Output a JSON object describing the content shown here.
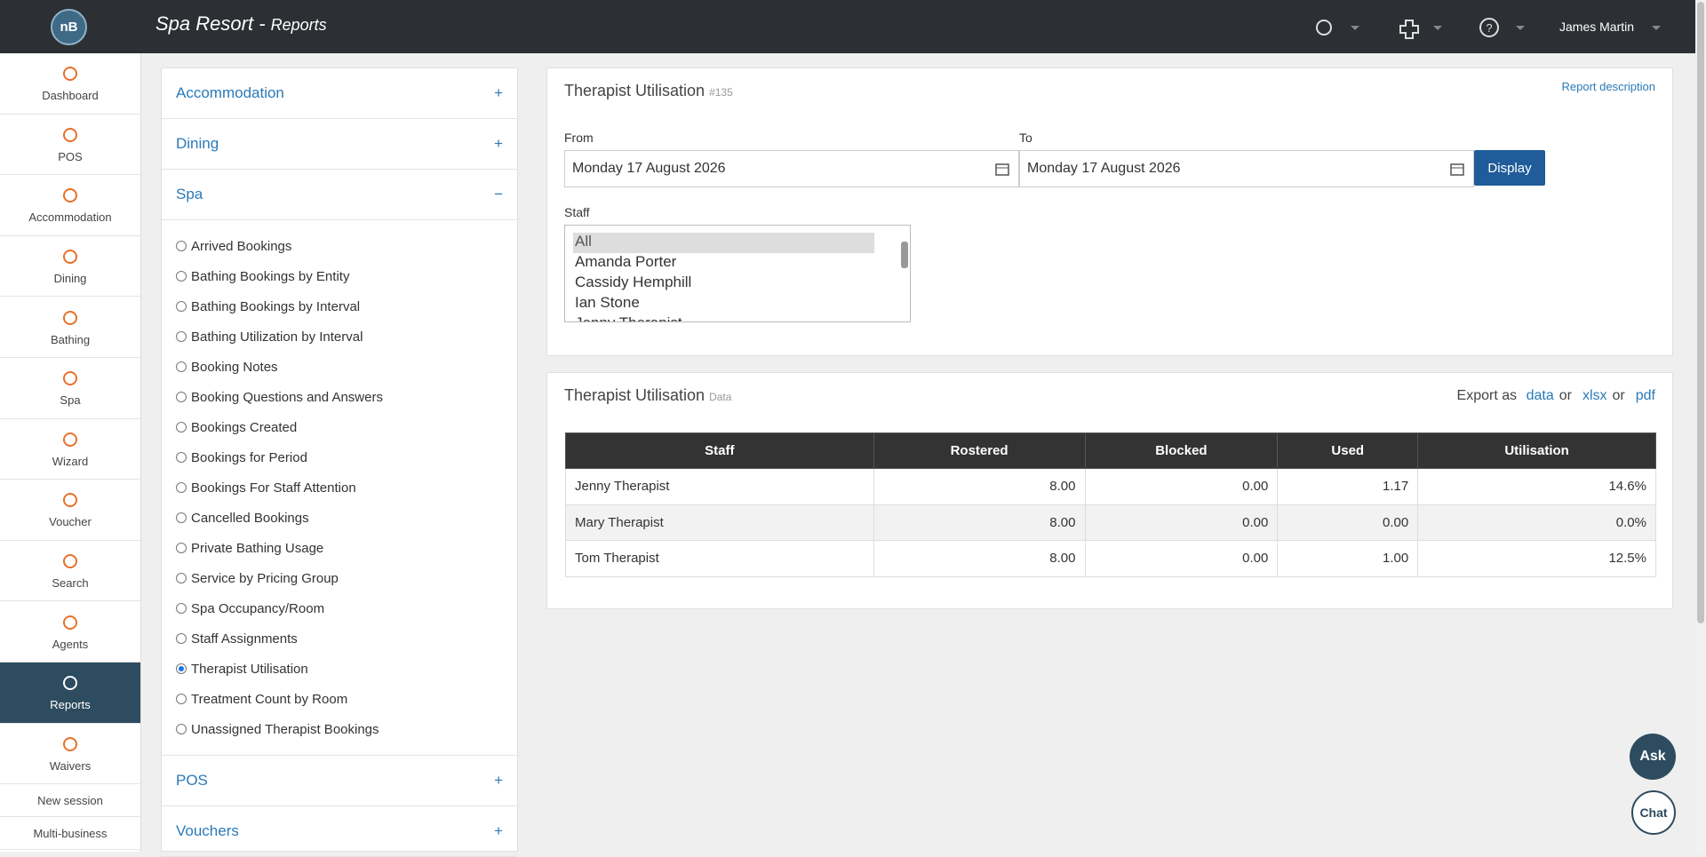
{
  "header": {
    "title": "Spa Resort",
    "separator": "-",
    "subtitle": "Reports",
    "user": "James Martin"
  },
  "sidebar": {
    "items": [
      {
        "label": "Dashboard"
      },
      {
        "label": "POS"
      },
      {
        "label": "Accommodation"
      },
      {
        "label": "Dining"
      },
      {
        "label": "Bathing"
      },
      {
        "label": "Spa"
      },
      {
        "label": "Wizard"
      },
      {
        "label": "Voucher"
      },
      {
        "label": "Search"
      },
      {
        "label": "Agents"
      },
      {
        "label": "Reports",
        "active": true
      },
      {
        "label": "Waivers"
      }
    ],
    "footer": [
      "New session",
      "Multi-business"
    ]
  },
  "report_menu": {
    "sections": [
      {
        "label": "Accommodation",
        "toggle": "+"
      },
      {
        "label": "Dining",
        "toggle": "+"
      },
      {
        "label": "Spa",
        "toggle": "−",
        "items": [
          {
            "label": "Arrived Bookings"
          },
          {
            "label": "Bathing Bookings by Entity"
          },
          {
            "label": "Bathing Bookings by Interval"
          },
          {
            "label": "Bathing Utilization by Interval"
          },
          {
            "label": "Booking Notes"
          },
          {
            "label": "Booking Questions and Answers"
          },
          {
            "label": "Bookings Created"
          },
          {
            "label": "Bookings for Period"
          },
          {
            "label": "Bookings For Staff Attention"
          },
          {
            "label": "Cancelled Bookings"
          },
          {
            "label": "Private Bathing Usage"
          },
          {
            "label": "Service by Pricing Group"
          },
          {
            "label": "Spa Occupancy/Room"
          },
          {
            "label": "Staff Assignments"
          },
          {
            "label": "Therapist Utilisation",
            "selected": true
          },
          {
            "label": "Treatment Count by Room"
          },
          {
            "label": "Unassigned Therapist Bookings"
          }
        ]
      },
      {
        "label": "POS",
        "toggle": "+"
      },
      {
        "label": "Vouchers",
        "toggle": "+"
      }
    ]
  },
  "report_form": {
    "title": "Therapist Utilisation",
    "id": "#135",
    "description_link": "Report description",
    "from_label": "From",
    "from_value": "Monday 17 August 2026",
    "to_label": "To",
    "to_value": "Monday 17 August 2026",
    "button": "Display",
    "staff_label": "Staff",
    "staff_options": [
      {
        "label": "All",
        "selected": true
      },
      {
        "label": "Amanda Porter"
      },
      {
        "label": "Cassidy Hemphill"
      },
      {
        "label": "Ian Stone"
      },
      {
        "label": "Jenny Therapist"
      }
    ]
  },
  "data_panel": {
    "title": "Therapist Utilisation",
    "tag": "Data",
    "export_label": "Export as",
    "export_links": [
      "data",
      "xlsx",
      "pdf"
    ],
    "export_or": "or"
  },
  "table": {
    "columns": [
      "Staff",
      "Rostered",
      "Blocked",
      "Used",
      "Utilisation"
    ],
    "rows": [
      [
        "Jenny Therapist",
        "8.00",
        "0.00",
        "1.17",
        "14.6%"
      ],
      [
        "Mary Therapist",
        "8.00",
        "0.00",
        "0.00",
        "0.0%"
      ],
      [
        "Tom Therapist",
        "8.00",
        "0.00",
        "1.00",
        "12.5%"
      ]
    ]
  },
  "chat": {
    "ask": "Ask",
    "chat": "Chat"
  }
}
